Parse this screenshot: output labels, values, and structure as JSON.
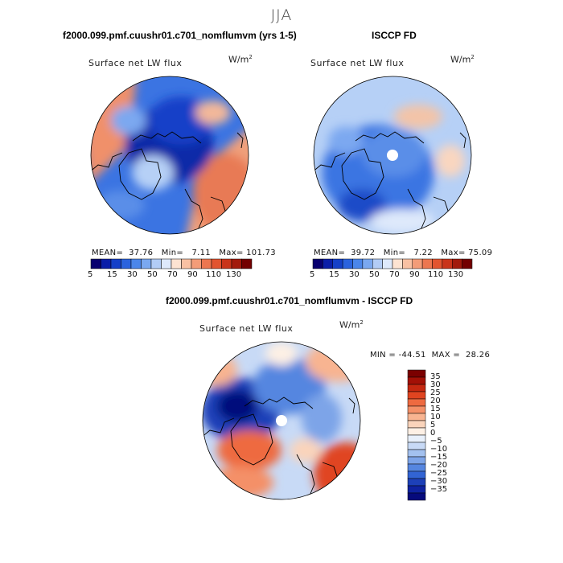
{
  "season": "JJA",
  "panels": [
    {
      "title": "f2000.099.pmf.cuushr01.c701_nomflumvm (yrs 1-5)",
      "variable": "Surface net LW flux",
      "unit": "W/m",
      "unit_exp": "2",
      "stats": {
        "mean_label": "MEAN=",
        "mean": "37.76",
        "min_label": "Min=",
        "min": "7.11",
        "max_label": "Max=",
        "max": "101.73"
      }
    },
    {
      "title": "ISCCP FD",
      "variable": "Surface net LW flux",
      "unit": "W/m",
      "unit_exp": "2",
      "stats": {
        "mean_label": "MEAN=",
        "mean": "39.72",
        "min_label": "Min=",
        "min": "7.22",
        "max_label": "Max=",
        "max": "75.09"
      }
    },
    {
      "title": "f2000.099.pmf.cuushr01.c701_nomflumvm - ISCCP FD",
      "variable": "Surface net LW flux",
      "unit": "W/m",
      "unit_exp": "2",
      "stats": {
        "min_label": "MIN =",
        "min": "-44.51",
        "max_label": "MAX =",
        "max": "28.26"
      }
    }
  ],
  "colorbar_abs": {
    "colors": [
      "#08006f",
      "#0b1ea8",
      "#1540c8",
      "#2b63de",
      "#4b86ea",
      "#7aa8f0",
      "#b2ccf6",
      "#dee9fb",
      "#fde3d2",
      "#f9c1a3",
      "#f39c78",
      "#ec7650",
      "#e25430",
      "#c9341a",
      "#a21a0c",
      "#730000"
    ],
    "tick_labels": [
      "5",
      "15",
      "30",
      "50",
      "70",
      "90",
      "110",
      "130"
    ]
  },
  "colorbar_diff": {
    "colors": [
      "#7b0000",
      "#a31006",
      "#c52810",
      "#e04420",
      "#ee6a40",
      "#f49068",
      "#f8b491",
      "#fad4bb",
      "#fdf0e5",
      "#e8f0fb",
      "#c8daf6",
      "#a3c1ef",
      "#7da4e8",
      "#5586e0",
      "#3264d4",
      "#1d40b8",
      "#0f22a0",
      "#060a7c"
    ],
    "tick_labels": [
      "35",
      "30",
      "25",
      "20",
      "15",
      "10",
      "5",
      "0",
      "−5",
      "−10",
      "−15",
      "−20",
      "−25",
      "−30",
      "−35"
    ]
  }
}
